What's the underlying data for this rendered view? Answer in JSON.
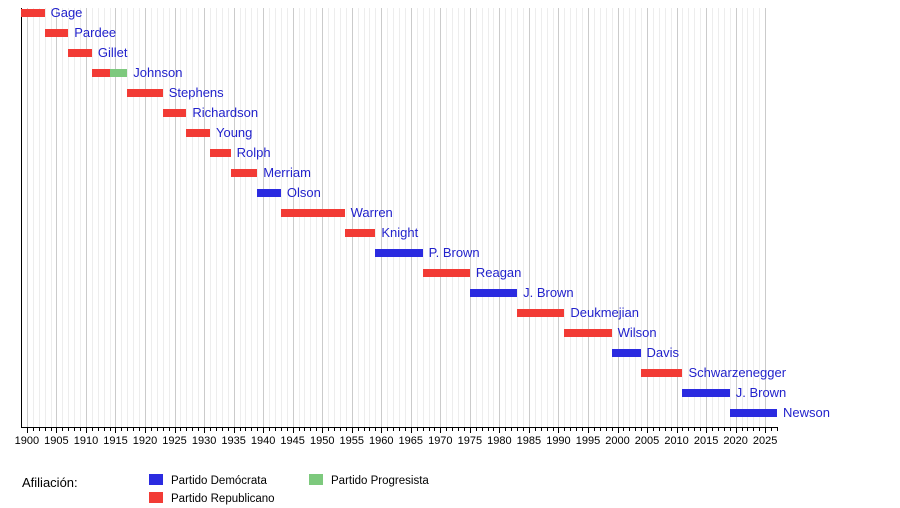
{
  "chart_data": {
    "type": "bar",
    "subtype": "gantt-timeline",
    "description": "Timeline of governors with party affiliation, 1899-2027",
    "grid": true,
    "label_color": "#2222cc",
    "x_axis": {
      "min_year": 1899,
      "max_year": 2027,
      "tick_step": 5,
      "minor_step": 1,
      "minor_tick_start": 1900,
      "minor_tick_end": 2027,
      "tick_labels": [
        "1900",
        "1905",
        "1910",
        "1915",
        "1920",
        "1925",
        "1930",
        "1935",
        "1940",
        "1945",
        "1950",
        "1955",
        "1960",
        "1965",
        "1970",
        "1975",
        "1980",
        "1985",
        "1990",
        "1995",
        "2000",
        "2005",
        "2010",
        "2015",
        "2020",
        "2025"
      ]
    },
    "parties": {
      "democrata": {
        "label": "Partido Demócrata",
        "color": "#2b2be0"
      },
      "republicano": {
        "label": "Partido Republicano",
        "color": "#f23b35"
      },
      "progresista": {
        "label": "Partido Progresista",
        "color": "#7dc97d"
      }
    },
    "governors": [
      {
        "name": "Gage",
        "segments": [
          {
            "start": 1899,
            "end": 1903,
            "party": "republicano"
          }
        ]
      },
      {
        "name": "Pardee",
        "segments": [
          {
            "start": 1903,
            "end": 1907,
            "party": "republicano"
          }
        ]
      },
      {
        "name": "Gillet",
        "segments": [
          {
            "start": 1907,
            "end": 1911,
            "party": "republicano"
          }
        ]
      },
      {
        "name": "Johnson",
        "segments": [
          {
            "start": 1911,
            "end": 1914,
            "party": "republicano"
          },
          {
            "start": 1914,
            "end": 1917,
            "party": "progresista"
          }
        ]
      },
      {
        "name": "Stephens",
        "segments": [
          {
            "start": 1917,
            "end": 1923,
            "party": "republicano"
          }
        ]
      },
      {
        "name": "Richardson",
        "segments": [
          {
            "start": 1923,
            "end": 1927,
            "party": "republicano"
          }
        ]
      },
      {
        "name": "Young",
        "segments": [
          {
            "start": 1927,
            "end": 1931,
            "party": "republicano"
          }
        ]
      },
      {
        "name": "Rolph",
        "segments": [
          {
            "start": 1931,
            "end": 1934.5,
            "party": "republicano"
          }
        ]
      },
      {
        "name": "Merriam",
        "segments": [
          {
            "start": 1934.5,
            "end": 1939,
            "party": "republicano"
          }
        ]
      },
      {
        "name": "Olson",
        "segments": [
          {
            "start": 1939,
            "end": 1943,
            "party": "democrata"
          }
        ]
      },
      {
        "name": "Warren",
        "segments": [
          {
            "start": 1943,
            "end": 1953.8,
            "party": "republicano"
          }
        ]
      },
      {
        "name": "Knight",
        "segments": [
          {
            "start": 1953.8,
            "end": 1959,
            "party": "republicano"
          }
        ]
      },
      {
        "name": "P. Brown",
        "segments": [
          {
            "start": 1959,
            "end": 1967,
            "party": "democrata"
          }
        ]
      },
      {
        "name": "Reagan",
        "segments": [
          {
            "start": 1967,
            "end": 1975,
            "party": "republicano"
          }
        ]
      },
      {
        "name": "J. Brown",
        "segments": [
          {
            "start": 1975,
            "end": 1983,
            "party": "democrata"
          }
        ]
      },
      {
        "name": "Deukmejian",
        "segments": [
          {
            "start": 1983,
            "end": 1991,
            "party": "republicano"
          }
        ]
      },
      {
        "name": "Wilson",
        "segments": [
          {
            "start": 1991,
            "end": 1999,
            "party": "republicano"
          }
        ]
      },
      {
        "name": "Davis",
        "segments": [
          {
            "start": 1999,
            "end": 2003.9,
            "party": "democrata"
          }
        ]
      },
      {
        "name": "Schwarzenegger",
        "segments": [
          {
            "start": 2003.9,
            "end": 2011,
            "party": "republicano"
          }
        ]
      },
      {
        "name": "J. Brown",
        "segments": [
          {
            "start": 2011,
            "end": 2019,
            "party": "democrata"
          }
        ]
      },
      {
        "name": "Newson",
        "segments": [
          {
            "start": 2019,
            "end": 2027,
            "party": "democrata"
          }
        ]
      }
    ],
    "legend": {
      "title": "Afiliación:",
      "position": "bottom",
      "entries": [
        {
          "party": "democrata",
          "label": "Partido Demócrata"
        },
        {
          "party": "republicano",
          "label": "Partido Republicano"
        },
        {
          "party": "progresista",
          "label": "Partido Progresista"
        }
      ]
    }
  }
}
